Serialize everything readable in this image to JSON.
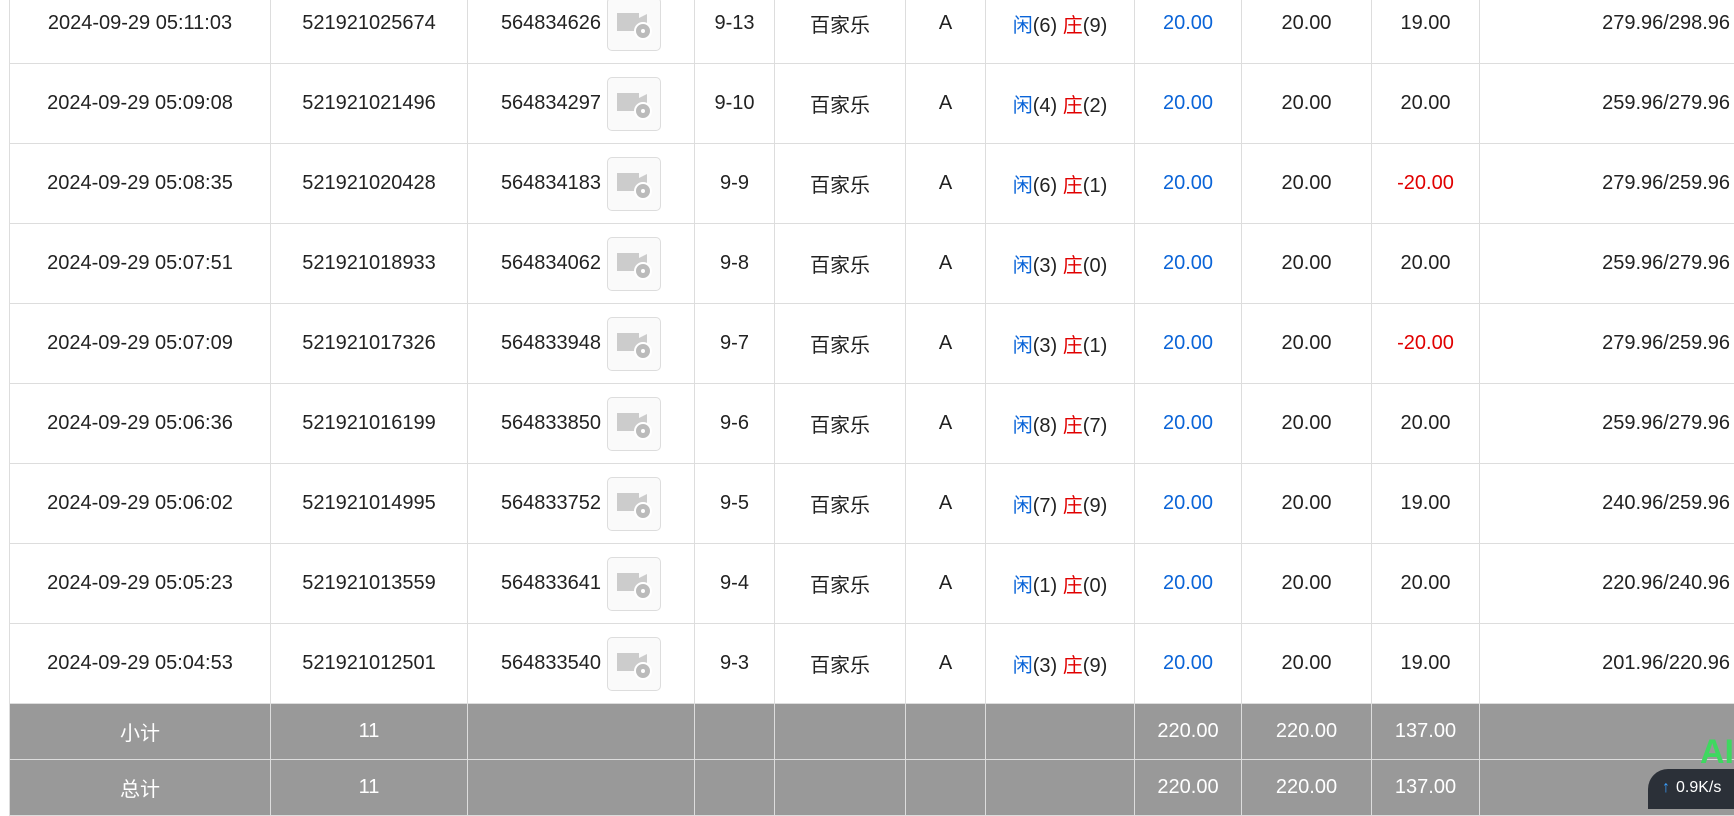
{
  "table": {
    "rows": [
      [
        "2024-09-29 05:11:03",
        "521921025674",
        "564834626",
        "9-13",
        "百家乐",
        "A",
        [
          "闲",
          "(6)",
          "庄",
          "(9)"
        ],
        "20.00",
        "20.00",
        "19.00",
        "279.96/298.96"
      ],
      [
        "2024-09-29 05:09:08",
        "521921021496",
        "564834297",
        "9-10",
        "百家乐",
        "A",
        [
          "闲",
          "(4)",
          "庄",
          "(2)"
        ],
        "20.00",
        "20.00",
        "20.00",
        "259.96/279.96"
      ],
      [
        "2024-09-29 05:08:35",
        "521921020428",
        "564834183",
        "9-9",
        "百家乐",
        "A",
        [
          "闲",
          "(6)",
          "庄",
          "(1)"
        ],
        "20.00",
        "20.00",
        "-20.00",
        "279.96/259.96"
      ],
      [
        "2024-09-29 05:07:51",
        "521921018933",
        "564834062",
        "9-8",
        "百家乐",
        "A",
        [
          "闲",
          "(3)",
          "庄",
          "(0)"
        ],
        "20.00",
        "20.00",
        "20.00",
        "259.96/279.96"
      ],
      [
        "2024-09-29 05:07:09",
        "521921017326",
        "564833948",
        "9-7",
        "百家乐",
        "A",
        [
          "闲",
          "(3)",
          "庄",
          "(1)"
        ],
        "20.00",
        "20.00",
        "-20.00",
        "279.96/259.96"
      ],
      [
        "2024-09-29 05:06:36",
        "521921016199",
        "564833850",
        "9-6",
        "百家乐",
        "A",
        [
          "闲",
          "(8)",
          "庄",
          "(7)"
        ],
        "20.00",
        "20.00",
        "20.00",
        "259.96/279.96"
      ],
      [
        "2024-09-29 05:06:02",
        "521921014995",
        "564833752",
        "9-5",
        "百家乐",
        "A",
        [
          "闲",
          "(7)",
          "庄",
          "(9)"
        ],
        "20.00",
        "20.00",
        "19.00",
        "240.96/259.96"
      ],
      [
        "2024-09-29 05:05:23",
        "521921013559",
        "564833641",
        "9-4",
        "百家乐",
        "A",
        [
          "闲",
          "(1)",
          "庄",
          "(0)"
        ],
        "20.00",
        "20.00",
        "20.00",
        "220.96/240.96"
      ],
      [
        "2024-09-29 05:04:53",
        "521921012501",
        "564833540",
        "9-3",
        "百家乐",
        "A",
        [
          "闲",
          "(3)",
          "庄",
          "(9)"
        ],
        "20.00",
        "20.00",
        "19.00",
        "201.96/220.96"
      ]
    ],
    "summary": [
      [
        "小计",
        "11",
        "",
        "",
        "",
        "",
        "",
        "220.00",
        "220.00",
        "137.00",
        ""
      ],
      [
        "总计",
        "11",
        "",
        "",
        "",
        "",
        "",
        "220.00",
        "220.00",
        "137.00",
        ""
      ]
    ]
  },
  "overlay": {
    "badge": "AI",
    "speed": "0.9K/s"
  }
}
